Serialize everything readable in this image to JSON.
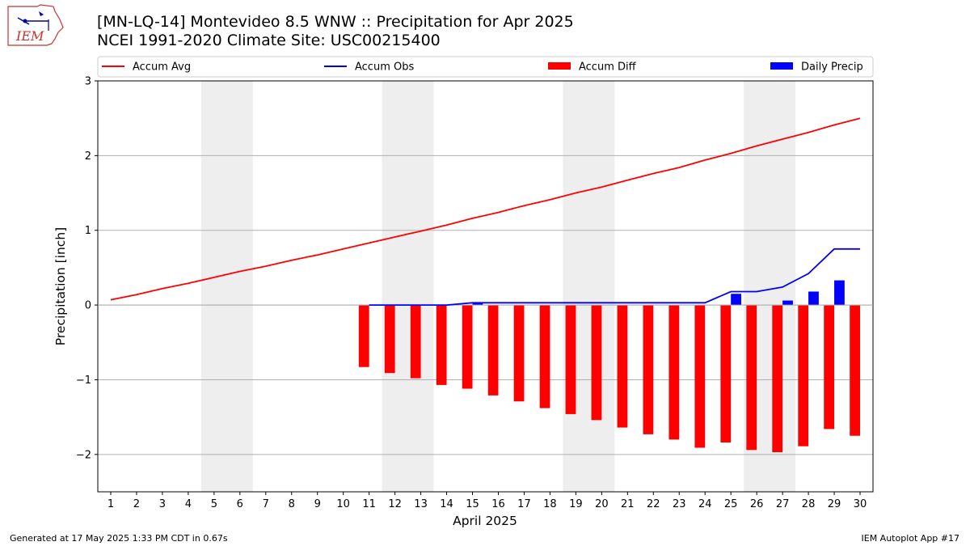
{
  "logo": {
    "text": "IEM"
  },
  "header": {
    "title_line1": "[MN-LQ-14] Montevideo 8.5 WNW :: Precipitation for Apr 2025",
    "title_line2": "NCEI 1991-2020 Climate Site: USC00215400"
  },
  "footer": {
    "left": "Generated at 17 May 2025 1:33 PM CDT in 0.67s",
    "right": "IEM Autoplot App #17"
  },
  "colors": {
    "avg": "#ff0000",
    "obs": "#0000ff",
    "diff": "#ff0000",
    "daily": "#0000ff",
    "weekend_shade": "#eeeeee",
    "grid": "#b0b0b0"
  },
  "chart_data": {
    "type": "bar",
    "xlabel": "April 2025",
    "ylabel": "Precipitation [inch]",
    "xlim": [
      0.5,
      30.5
    ],
    "ylim": [
      -2.5,
      3
    ],
    "x_ticks": [
      1,
      2,
      3,
      4,
      5,
      6,
      7,
      8,
      9,
      10,
      11,
      12,
      13,
      14,
      15,
      16,
      17,
      18,
      19,
      20,
      21,
      22,
      23,
      24,
      25,
      26,
      27,
      28,
      29,
      30
    ],
    "y_ticks": [
      3,
      2,
      1,
      0,
      -1,
      -2
    ],
    "y_tick_labels": [
      "3",
      "2",
      "1",
      "0",
      "−1",
      "−2"
    ],
    "grid": "horizontal",
    "legend_placement": "top",
    "shaded_days": [
      [
        5,
        6
      ],
      [
        12,
        13
      ],
      [
        19,
        20
      ],
      [
        26,
        27
      ]
    ],
    "series": [
      {
        "name": "Accum Avg",
        "kind": "line",
        "days": [
          1,
          2,
          3,
          4,
          5,
          6,
          7,
          8,
          9,
          10,
          11,
          12,
          13,
          14,
          15,
          16,
          17,
          18,
          19,
          20,
          21,
          22,
          23,
          24,
          25,
          26,
          27,
          28,
          29,
          30
        ],
        "values": [
          0.07,
          0.14,
          0.22,
          0.29,
          0.37,
          0.45,
          0.52,
          0.6,
          0.67,
          0.75,
          0.83,
          0.91,
          0.99,
          1.07,
          1.16,
          1.24,
          1.33,
          1.41,
          1.5,
          1.58,
          1.67,
          1.76,
          1.84,
          1.94,
          2.03,
          2.13,
          2.22,
          2.31,
          2.41,
          2.5
        ]
      },
      {
        "name": "Accum Obs",
        "kind": "line",
        "days": [
          11,
          12,
          13,
          14,
          15,
          16,
          17,
          18,
          19,
          20,
          21,
          22,
          23,
          24,
          25,
          26,
          27,
          28,
          29,
          30
        ],
        "values": [
          0,
          0,
          0,
          0,
          0.03,
          0.03,
          0.03,
          0.03,
          0.03,
          0.03,
          0.03,
          0.03,
          0.03,
          0.03,
          0.18,
          0.18,
          0.24,
          0.42,
          0.75,
          0.75
        ]
      },
      {
        "name": "Accum Diff",
        "kind": "bar",
        "days": [
          11,
          12,
          13,
          14,
          15,
          16,
          17,
          18,
          19,
          20,
          21,
          22,
          23,
          24,
          25,
          26,
          27,
          28,
          29,
          30
        ],
        "values": [
          -0.83,
          -0.91,
          -0.98,
          -1.07,
          -1.12,
          -1.21,
          -1.29,
          -1.38,
          -1.46,
          -1.54,
          -1.64,
          -1.73,
          -1.8,
          -1.91,
          -1.84,
          -1.94,
          -1.97,
          -1.89,
          -1.66,
          -1.75
        ]
      },
      {
        "name": "Daily Precip",
        "kind": "bar",
        "days": [
          11,
          12,
          13,
          14,
          15,
          16,
          17,
          18,
          19,
          20,
          21,
          22,
          23,
          24,
          25,
          26,
          27,
          28,
          29,
          30
        ],
        "values": [
          0,
          0,
          0,
          0,
          0.03,
          0,
          0,
          0,
          0,
          0,
          0,
          0,
          0,
          0,
          0.15,
          0,
          0.06,
          0.18,
          0.33,
          0
        ]
      }
    ]
  }
}
